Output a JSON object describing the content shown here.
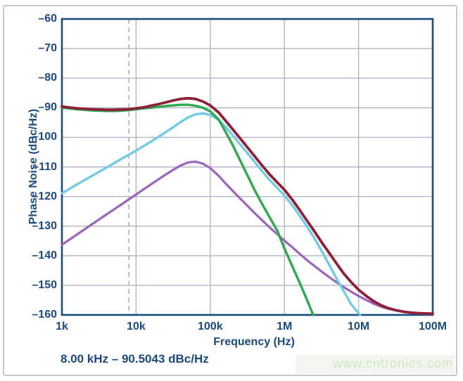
{
  "watermark": {
    "text": "www.cntronics.com",
    "color": "#cde9c1"
  },
  "chart_data": {
    "type": "line",
    "title": "",
    "xlabel": "Frequency (Hz)",
    "ylabel": "Phase Noise (dBc/Hz)",
    "x_scale": "log",
    "x_range_hz": [
      1000,
      100000000
    ],
    "ylim": [
      -160,
      -60
    ],
    "grid": true,
    "legend": false,
    "axis_color": "#1b4a7e",
    "grid_color": "#aeb4c4",
    "x_ticks_hz": [
      1000,
      10000,
      100000,
      1000000,
      10000000,
      100000000
    ],
    "x_tick_labels": [
      "1k",
      "10k",
      "100k",
      "1M",
      "10M",
      "100M"
    ],
    "y_ticks_dbchz": [
      -60,
      -70,
      -80,
      -90,
      -100,
      -110,
      -120,
      -130,
      -140,
      -150,
      -160
    ],
    "y_tick_labels": [
      "–60",
      "–70",
      "–80",
      "–90",
      "–100",
      "–110",
      "–120",
      "–130",
      "–140",
      "–150",
      "–160"
    ],
    "marker": {
      "type": "dashed-vertical-line",
      "frequency_hz": 8000,
      "value_dbchz": -90.5043,
      "readout": "8.00 kHz – 90.5043 dBc/Hz",
      "color": "#a9afbf"
    },
    "series": [
      {
        "name": "purple-curve",
        "color": "#9c63bc",
        "width": 3.2,
        "points": [
          [
            1000,
            -136.3
          ],
          [
            1600,
            -132.8
          ],
          [
            2500,
            -129.5
          ],
          [
            4000,
            -126.0
          ],
          [
            6300,
            -122.7
          ],
          [
            10000,
            -119.3
          ],
          [
            16000,
            -115.8
          ],
          [
            25000,
            -112.6
          ],
          [
            32000,
            -110.9
          ],
          [
            40000,
            -109.5
          ],
          [
            50000,
            -108.5
          ],
          [
            63000,
            -108.2
          ],
          [
            80000,
            -108.9
          ],
          [
            100000,
            -110.4
          ],
          [
            130000,
            -113.0
          ],
          [
            160000,
            -115.5
          ],
          [
            200000,
            -118.0
          ],
          [
            250000,
            -120.5
          ],
          [
            320000,
            -123.2
          ],
          [
            400000,
            -125.7
          ],
          [
            500000,
            -128.0
          ],
          [
            630000,
            -130.4
          ],
          [
            800000,
            -132.7
          ],
          [
            1000000,
            -134.9
          ],
          [
            1300000,
            -137.3
          ],
          [
            1600000,
            -139.3
          ],
          [
            2000000,
            -141.4
          ],
          [
            2500000,
            -143.3
          ],
          [
            3200000,
            -145.4
          ],
          [
            4000000,
            -147.2
          ],
          [
            5000000,
            -148.9
          ],
          [
            6300000,
            -150.6
          ],
          [
            8000000,
            -152.2
          ],
          [
            10000000,
            -153.6
          ],
          [
            13000000,
            -155.1
          ],
          [
            16000000,
            -156.2
          ],
          [
            20000000,
            -157.2
          ],
          [
            25000000,
            -157.9
          ],
          [
            32000000,
            -158.5
          ],
          [
            40000000,
            -159.0
          ],
          [
            50000000,
            -159.3
          ],
          [
            63000000,
            -159.5
          ],
          [
            100000000,
            -159.7
          ]
        ]
      },
      {
        "name": "cyan-curve",
        "color": "#72cae4",
        "width": 3.4,
        "points": [
          [
            1000,
            -118.9
          ],
          [
            1600,
            -115.9
          ],
          [
            2500,
            -113.1
          ],
          [
            4000,
            -110.2
          ],
          [
            6300,
            -107.3
          ],
          [
            10000,
            -104.5
          ],
          [
            16000,
            -101.4
          ],
          [
            25000,
            -98.3
          ],
          [
            32000,
            -96.5
          ],
          [
            40000,
            -94.8
          ],
          [
            50000,
            -93.3
          ],
          [
            63000,
            -92.2
          ],
          [
            80000,
            -91.9
          ],
          [
            100000,
            -92.4
          ],
          [
            130000,
            -94.1
          ],
          [
            160000,
            -96.4
          ],
          [
            200000,
            -99.2
          ],
          [
            250000,
            -102.2
          ],
          [
            320000,
            -105.4
          ],
          [
            400000,
            -108.4
          ],
          [
            500000,
            -111.4
          ],
          [
            630000,
            -114.4
          ],
          [
            800000,
            -117.1
          ],
          [
            1000000,
            -119.6
          ],
          [
            1300000,
            -123.2
          ],
          [
            1600000,
            -126.4
          ],
          [
            2000000,
            -130.0
          ],
          [
            2500000,
            -133.8
          ],
          [
            3200000,
            -138.5
          ],
          [
            4000000,
            -143.0
          ],
          [
            5000000,
            -147.5
          ],
          [
            6300000,
            -152.0
          ],
          [
            8000000,
            -156.5
          ],
          [
            10000000,
            -159.4
          ],
          [
            10500000,
            -160.0
          ]
        ]
      },
      {
        "name": "green-curve",
        "color": "#2fa84f",
        "width": 3.4,
        "points": [
          [
            1000,
            -90.0
          ],
          [
            1600,
            -90.5
          ],
          [
            2500,
            -90.9
          ],
          [
            4000,
            -91.1
          ],
          [
            5000,
            -91.1
          ],
          [
            6300,
            -91.0
          ],
          [
            8000,
            -90.8
          ],
          [
            10000,
            -90.5
          ],
          [
            13000,
            -90.2
          ],
          [
            16000,
            -90.0
          ],
          [
            20000,
            -89.7
          ],
          [
            25000,
            -89.4
          ],
          [
            32000,
            -89.2
          ],
          [
            40000,
            -89.0
          ],
          [
            50000,
            -89.0
          ],
          [
            63000,
            -89.3
          ],
          [
            80000,
            -90.0
          ],
          [
            100000,
            -91.2
          ],
          [
            130000,
            -94.0
          ],
          [
            160000,
            -98.0
          ],
          [
            200000,
            -102.5
          ],
          [
            250000,
            -107.5
          ],
          [
            320000,
            -113.0
          ],
          [
            400000,
            -118.0
          ],
          [
            500000,
            -122.5
          ],
          [
            630000,
            -127.0
          ],
          [
            800000,
            -131.5
          ],
          [
            1000000,
            -137.5
          ],
          [
            1200000,
            -142.0
          ],
          [
            1500000,
            -147.5
          ],
          [
            1800000,
            -152.0
          ],
          [
            2100000,
            -156.0
          ],
          [
            2440000,
            -160.0
          ]
        ]
      },
      {
        "name": "dark-red-curve",
        "color": "#8e2138",
        "width": 3.8,
        "points": [
          [
            1000,
            -89.6
          ],
          [
            1600,
            -90.2
          ],
          [
            2500,
            -90.5
          ],
          [
            4000,
            -90.7
          ],
          [
            5000,
            -90.7
          ],
          [
            6300,
            -90.6
          ],
          [
            8000,
            -90.5
          ],
          [
            10000,
            -90.2
          ],
          [
            13000,
            -89.8
          ],
          [
            16000,
            -89.3
          ],
          [
            20000,
            -88.8
          ],
          [
            25000,
            -88.2
          ],
          [
            32000,
            -87.5
          ],
          [
            40000,
            -87.0
          ],
          [
            50000,
            -86.8
          ],
          [
            63000,
            -87.0
          ],
          [
            80000,
            -87.9
          ],
          [
            100000,
            -89.2
          ],
          [
            130000,
            -91.6
          ],
          [
            160000,
            -94.3
          ],
          [
            200000,
            -97.2
          ],
          [
            250000,
            -100.2
          ],
          [
            320000,
            -103.5
          ],
          [
            400000,
            -106.5
          ],
          [
            500000,
            -109.5
          ],
          [
            630000,
            -112.5
          ],
          [
            800000,
            -115.2
          ],
          [
            1000000,
            -117.7
          ],
          [
            1300000,
            -121.3
          ],
          [
            1600000,
            -124.5
          ],
          [
            2000000,
            -128.0
          ],
          [
            2500000,
            -131.5
          ],
          [
            3200000,
            -135.5
          ],
          [
            4000000,
            -139.0
          ],
          [
            5000000,
            -142.5
          ],
          [
            6300000,
            -146.0
          ],
          [
            8000000,
            -149.0
          ],
          [
            10000000,
            -151.5
          ],
          [
            13000000,
            -153.8
          ],
          [
            16000000,
            -155.4
          ],
          [
            20000000,
            -156.7
          ],
          [
            25000000,
            -157.7
          ],
          [
            32000000,
            -158.4
          ],
          [
            40000000,
            -158.9
          ],
          [
            50000000,
            -159.2
          ],
          [
            63000000,
            -159.4
          ],
          [
            80000000,
            -159.5
          ],
          [
            100000000,
            -159.6
          ]
        ]
      }
    ]
  }
}
